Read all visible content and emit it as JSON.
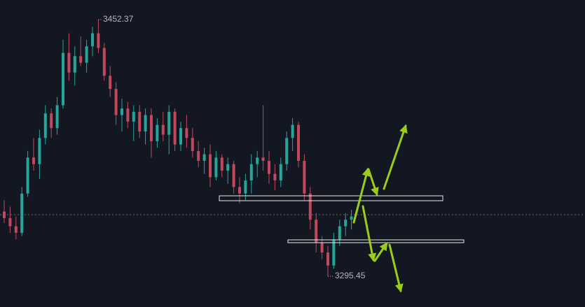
{
  "chart_data": {
    "type": "candlestick",
    "up_color": "#26a69a",
    "down_color": "#c2485e",
    "annotations": [
      {
        "text": "3452.37"
      },
      {
        "text": "3295.45"
      }
    ],
    "open": [
      3335,
      3331,
      3326,
      3322,
      3346,
      3368,
      3364,
      3380,
      3395,
      3386,
      3400,
      3432,
      3420,
      3430,
      3426,
      3436,
      3444,
      3435,
      3418,
      3410,
      3394,
      3398,
      3390,
      3396,
      3384,
      3394,
      3378,
      3388,
      3382,
      3396,
      3376,
      3386,
      3380,
      3372,
      3366,
      3370,
      3356,
      3368,
      3360,
      3364,
      3350,
      3346,
      3354,
      3364,
      3368,
      3366,
      3358,
      3354,
      3364,
      3380,
      3388,
      3366,
      3346,
      3330,
      3316,
      3310,
      3302,
      3318,
      3326,
      3330
    ],
    "high": [
      3342,
      3338,
      3332,
      3350,
      3372,
      3380,
      3385,
      3400,
      3398,
      3405,
      3440,
      3444,
      3436,
      3442,
      3440,
      3448,
      3452.37,
      3438,
      3424,
      3414,
      3404,
      3402,
      3400,
      3400,
      3398,
      3398,
      3392,
      3396,
      3400,
      3398,
      3390,
      3394,
      3386,
      3378,
      3374,
      3376,
      3372,
      3370,
      3368,
      3366,
      3356,
      3358,
      3370,
      3372,
      3400,
      3372,
      3364,
      3368,
      3384,
      3392,
      3390,
      3370,
      3350,
      3334,
      3320,
      3314,
      3322,
      3330,
      3334,
      3336
    ],
    "low": [
      3328,
      3322,
      3318,
      3320,
      3344,
      3360,
      3355,
      3376,
      3380,
      3382,
      3398,
      3415,
      3412,
      3424,
      3420,
      3430,
      3432,
      3415,
      3405,
      3388,
      3384,
      3386,
      3378,
      3380,
      3376,
      3368,
      3374,
      3378,
      3370,
      3372,
      3372,
      3374,
      3368,
      3362,
      3358,
      3350,
      3354,
      3356,
      3352,
      3346,
      3340,
      3342,
      3346,
      3356,
      3360,
      3352,
      3348,
      3350,
      3360,
      3372,
      3362,
      3342,
      3324,
      3310,
      3306,
      3295.45,
      3300,
      3314,
      3320,
      3324
    ],
    "close": [
      3331,
      3326,
      3322,
      3346,
      3368,
      3364,
      3380,
      3395,
      3386,
      3400,
      3432,
      3420,
      3430,
      3426,
      3436,
      3444,
      3435,
      3418,
      3410,
      3394,
      3398,
      3390,
      3396,
      3384,
      3394,
      3378,
      3388,
      3382,
      3396,
      3376,
      3386,
      3380,
      3372,
      3366,
      3370,
      3356,
      3368,
      3360,
      3364,
      3350,
      3346,
      3354,
      3364,
      3368,
      3366,
      3358,
      3354,
      3364,
      3380,
      3388,
      3366,
      3346,
      3330,
      3316,
      3310,
      3302,
      3318,
      3326,
      3330,
      3332
    ]
  }
}
